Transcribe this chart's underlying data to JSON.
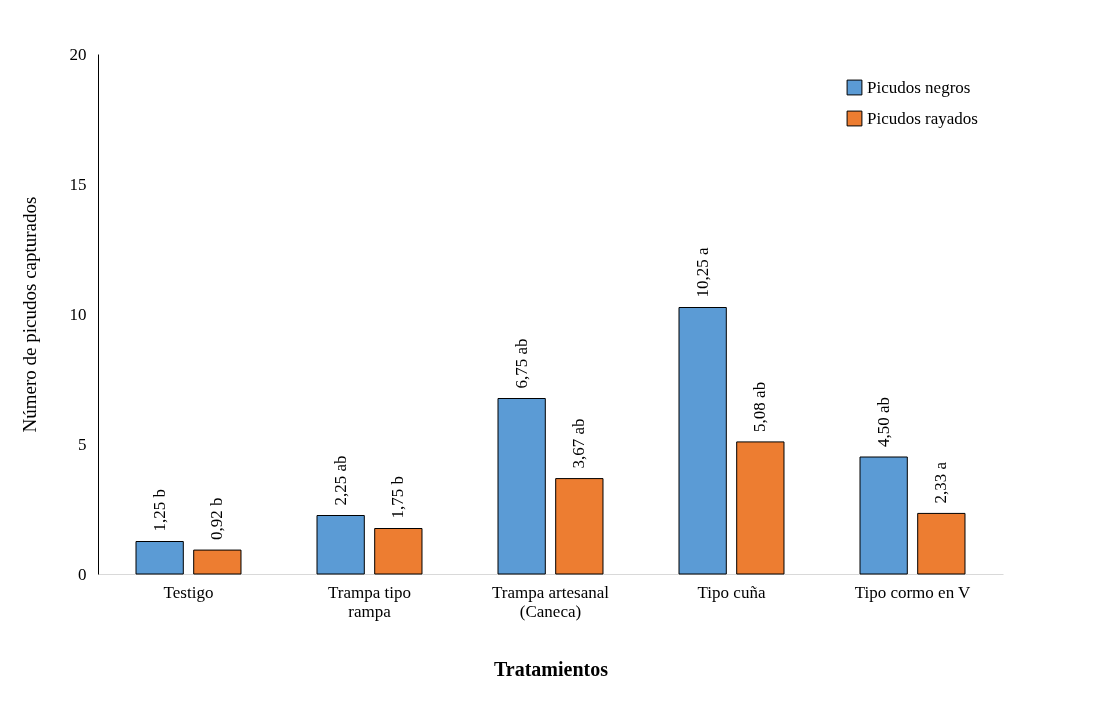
{
  "chart_data": {
    "type": "bar",
    "xlabel": "Tratamientos",
    "ylabel": "Número de picudos capturados",
    "categories": [
      "Testigo",
      "Trampa tipo\nrampa",
      "Trampa artesanal\n(Caneca)",
      "Tipo cuña",
      "Tipo cormo en V"
    ],
    "series": [
      {
        "name": "Picudos negros",
        "color": "#5b9bd5",
        "values": [
          1.25,
          2.25,
          6.75,
          10.25,
          4.5
        ],
        "value_labels": [
          "1,25 b",
          "2,25 ab",
          "6,75 ab",
          "10,25 a",
          "4,50 ab"
        ]
      },
      {
        "name": "Picudos rayados",
        "color": "#ed7d31",
        "values": [
          0.92,
          1.75,
          3.67,
          5.08,
          2.33
        ],
        "value_labels": [
          "0,92 b",
          "1,75 b",
          "3,67 ab",
          "5,08 ab",
          "2,33 a"
        ]
      }
    ],
    "ylim": [
      0,
      20
    ],
    "yticks": [
      0,
      5,
      10,
      15,
      20
    ],
    "grid": false,
    "legend": "top right"
  }
}
